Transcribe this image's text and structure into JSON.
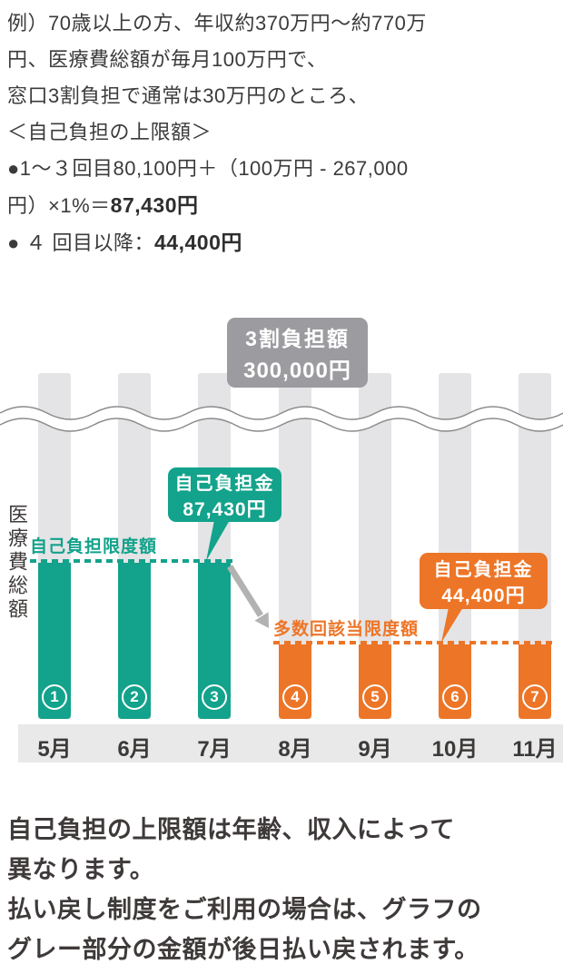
{
  "intro": {
    "lines": [
      "例）70歳以上の方、年収約370万円〜約770万",
      "円、医療費総額が毎月100万円で、",
      "窓口3割負担で通常は30万円のところ、",
      "＜自己負担の上限額＞",
      "●1〜３回目80,100円＋（100万円 - 267,000"
    ],
    "formula_prefix": "円）×1%＝",
    "formula_result": "87,430円",
    "fourth_prefix": "● ４ 回目以降：",
    "fourth_result": "44,400円"
  },
  "chart": {
    "ylabel": "医療費総額",
    "gray_badge": {
      "line1": "3割負担額",
      "line2": "300,000円"
    },
    "teal_badge": {
      "line1": "自己負担金",
      "line2": "87,430円"
    },
    "orange_badge": {
      "line1": "自己負担金",
      "line2": "44,400円"
    },
    "teal_limit_label": "自己負担限度額",
    "orange_limit_label": "多数回該当限度額",
    "months": [
      "5月",
      "6月",
      "7月",
      "8月",
      "9月",
      "10月",
      "11月"
    ],
    "bar_numbers": [
      "1",
      "2",
      "3",
      "4",
      "5",
      "6",
      "7"
    ],
    "colors": {
      "teal": "#13a28b",
      "orange": "#ed7527",
      "gray_bar": "#e4e4e6",
      "badge_gray": "#9c9ca0",
      "axis_band": "#e9e9e9",
      "arrow": "#b2b2b2"
    }
  },
  "chart_data": {
    "type": "bar",
    "categories": [
      "5月",
      "6月",
      "7月",
      "8月",
      "9月",
      "10月",
      "11月"
    ],
    "point_labels": [
      "①",
      "②",
      "③",
      "④",
      "⑤",
      "⑥",
      "⑦"
    ],
    "series": [
      {
        "name": "3割負担額（医療費総額）",
        "values": [
          300000,
          300000,
          300000,
          300000,
          300000,
          300000,
          300000
        ],
        "color": "#e4e4e6"
      },
      {
        "name": "自己負担金",
        "values": [
          87430,
          87430,
          87430,
          44400,
          44400,
          44400,
          44400
        ],
        "colors": [
          "#13a28b",
          "#13a28b",
          "#13a28b",
          "#ed7527",
          "#ed7527",
          "#ed7527",
          "#ed7527"
        ]
      }
    ],
    "annotations": [
      "3割負担額 300,000円",
      "自己負担金 87,430円",
      "自己負担金 44,400円",
      "自己負担限度額",
      "多数回該当限度額"
    ],
    "ylabel": "医療費総額",
    "axis_break": true,
    "legend_position": "none",
    "grid": false
  },
  "footer": {
    "lines": [
      "自己負担の上限額は年齢、収入によって",
      "異なります。",
      "払い戻し制度をご利用の場合は、グラフの",
      "グレー部分の金額が後日払い戻されます。"
    ]
  }
}
